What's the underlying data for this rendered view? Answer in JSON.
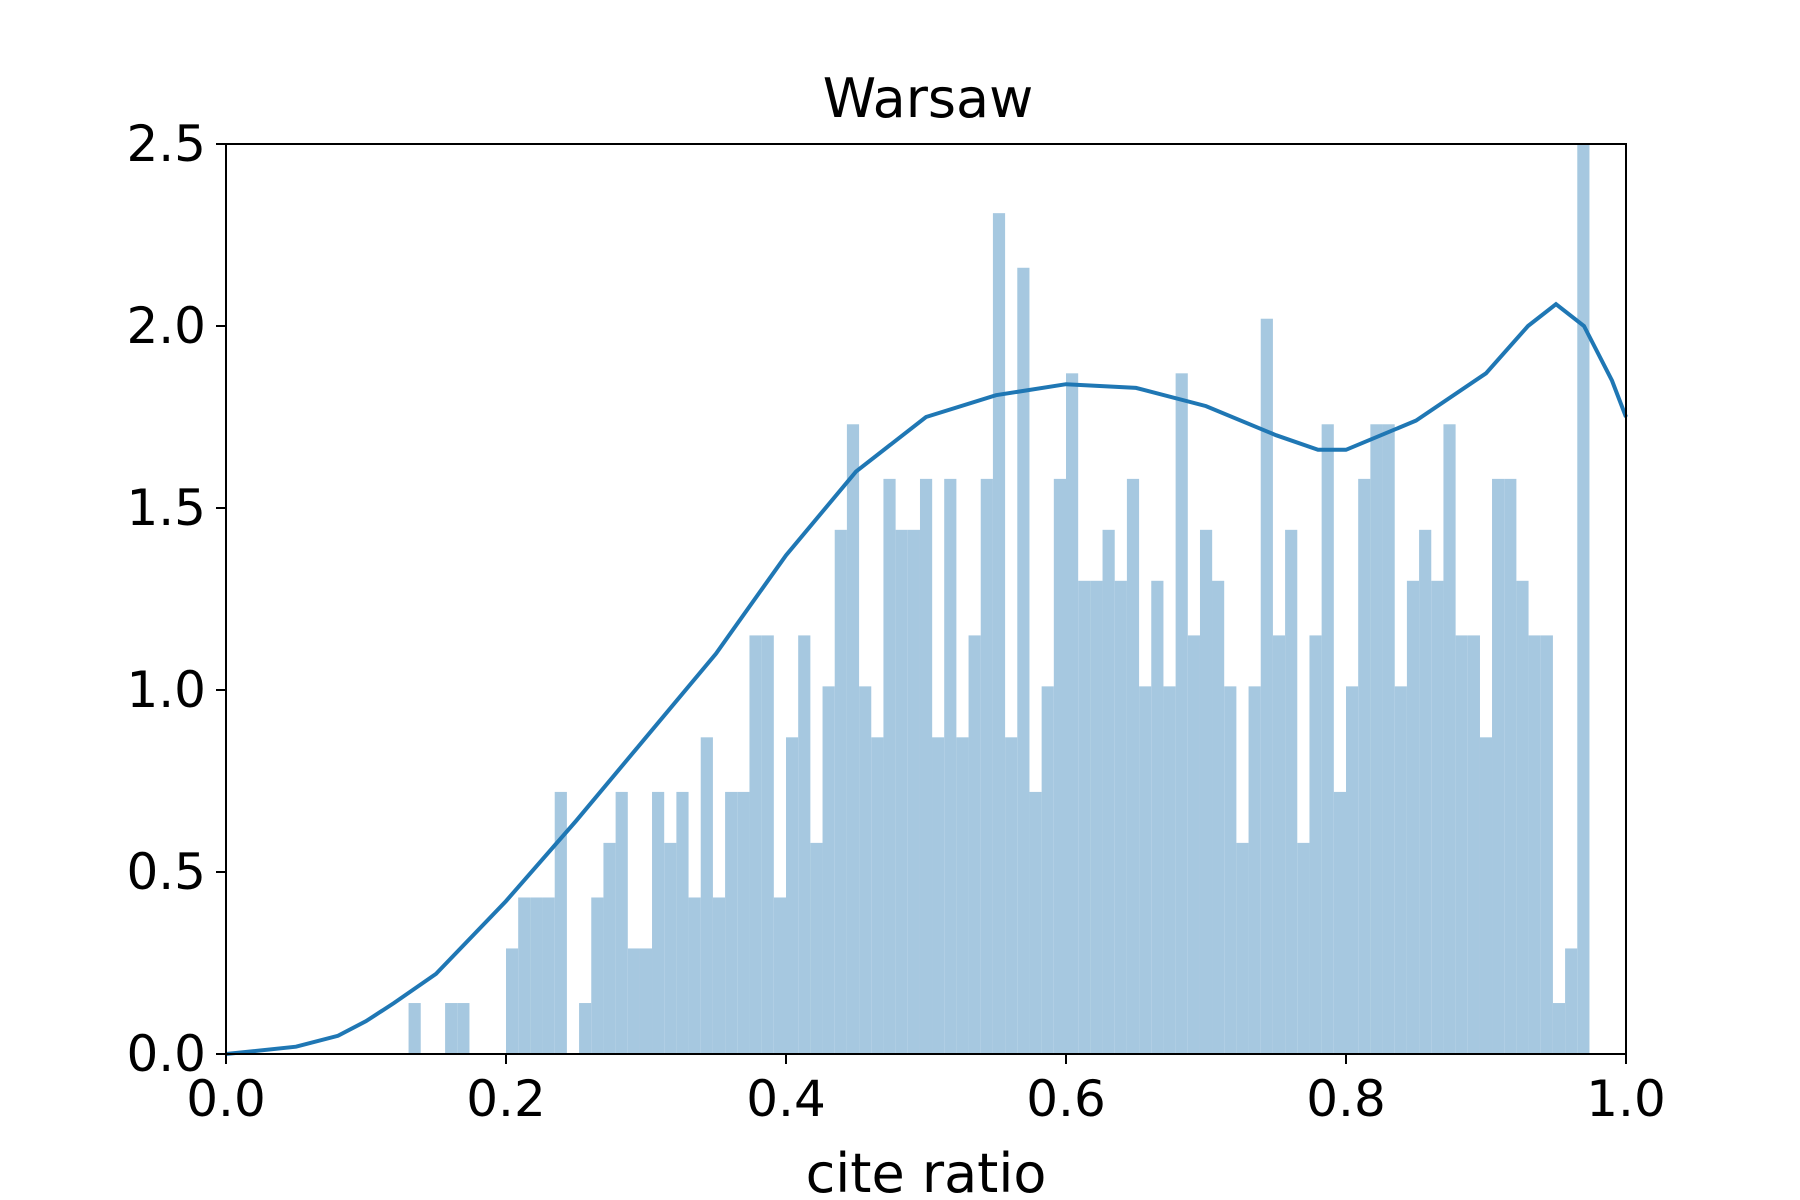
{
  "chart_data": {
    "type": "bar",
    "title": "Warsaw",
    "xlabel": "cite ratio",
    "ylabel": "",
    "xlim": [
      0.0,
      1.0
    ],
    "ylim": [
      0.0,
      2.5
    ],
    "xticks": [
      "0.0",
      "0.2",
      "0.4",
      "0.6",
      "0.8",
      "1.0"
    ],
    "yticks": [
      "0.0",
      "0.5",
      "1.0",
      "1.5",
      "2.0",
      "2.5"
    ],
    "grid": false,
    "legend": "none",
    "bar_color": "#a6c8e0",
    "line_color": "#1f77b4",
    "bin_width": 0.0087,
    "histogram": {
      "bin_start": [
        0.1304,
        0.1391,
        0.1565,
        0.1652,
        0.2,
        0.2087,
        0.2174,
        0.2261,
        0.2348,
        0.2522,
        0.2609,
        0.2696,
        0.2783,
        0.287,
        0.2957,
        0.3043,
        0.313,
        0.3217,
        0.3304,
        0.3391,
        0.3478,
        0.3565,
        0.3652,
        0.3739,
        0.3826,
        0.3913,
        0.4,
        0.4087,
        0.4174,
        0.4261,
        0.4348,
        0.4435,
        0.4522,
        0.4609,
        0.4696,
        0.4783,
        0.487,
        0.4957,
        0.5043,
        0.513,
        0.5217,
        0.5304,
        0.5391,
        0.5478,
        0.5565,
        0.5652,
        0.5739,
        0.5826,
        0.5913,
        0.6,
        0.6087,
        0.6174,
        0.6261,
        0.6348,
        0.6435,
        0.6522,
        0.6609,
        0.6696,
        0.6783,
        0.687,
        0.6957,
        0.7043,
        0.713,
        0.7217,
        0.7304,
        0.7391,
        0.7478,
        0.7565,
        0.7652,
        0.7739,
        0.7826,
        0.7913,
        0.8,
        0.8087,
        0.8174,
        0.8261,
        0.8348,
        0.8435,
        0.8522,
        0.8609,
        0.8696,
        0.8783,
        0.887,
        0.8957,
        0.9043,
        0.913,
        0.9217,
        0.9304,
        0.9391,
        0.9478,
        0.9565,
        0.9652,
        0.9739,
        0.9826,
        0.9913
      ],
      "density": [
        0.14,
        0.0,
        0.14,
        0.14,
        0.29,
        0.43,
        0.43,
        0.43,
        0.72,
        0.14,
        0.43,
        0.58,
        0.72,
        0.29,
        0.29,
        0.72,
        0.58,
        0.72,
        0.43,
        0.87,
        0.43,
        0.72,
        0.72,
        1.15,
        1.15,
        0.43,
        0.87,
        1.15,
        0.58,
        1.01,
        1.44,
        1.73,
        1.01,
        0.87,
        1.58,
        1.44,
        1.44,
        1.58,
        0.87,
        1.58,
        0.87,
        1.15,
        1.58,
        2.31,
        0.87,
        2.16,
        0.72,
        1.01,
        1.58,
        1.87,
        1.3,
        1.3,
        1.44,
        1.3,
        1.58,
        1.01,
        1.3,
        1.01,
        1.87,
        1.15,
        1.44,
        1.3,
        1.01,
        0.58,
        1.01,
        2.02,
        1.15,
        1.44,
        0.58,
        1.15,
        1.73,
        0.72,
        1.01,
        1.58,
        1.73,
        1.73,
        1.01,
        1.3,
        1.44,
        1.3,
        1.73,
        1.15,
        1.15,
        0.87,
        1.58,
        1.58,
        1.3,
        1.15,
        1.15,
        0.14,
        0.29,
        2.5,
        0.0,
        0.0,
        0.0
      ]
    },
    "kde": {
      "x": [
        0.0,
        0.05,
        0.08,
        0.1,
        0.12,
        0.15,
        0.2,
        0.25,
        0.3,
        0.35,
        0.4,
        0.45,
        0.5,
        0.55,
        0.6,
        0.65,
        0.7,
        0.75,
        0.78,
        0.8,
        0.85,
        0.9,
        0.93,
        0.95,
        0.97,
        0.99,
        1.0
      ],
      "y": [
        0.0,
        0.02,
        0.05,
        0.09,
        0.14,
        0.22,
        0.42,
        0.64,
        0.87,
        1.1,
        1.37,
        1.6,
        1.75,
        1.81,
        1.84,
        1.83,
        1.78,
        1.7,
        1.66,
        1.66,
        1.74,
        1.87,
        2.0,
        2.06,
        2.0,
        1.85,
        1.75
      ]
    }
  }
}
